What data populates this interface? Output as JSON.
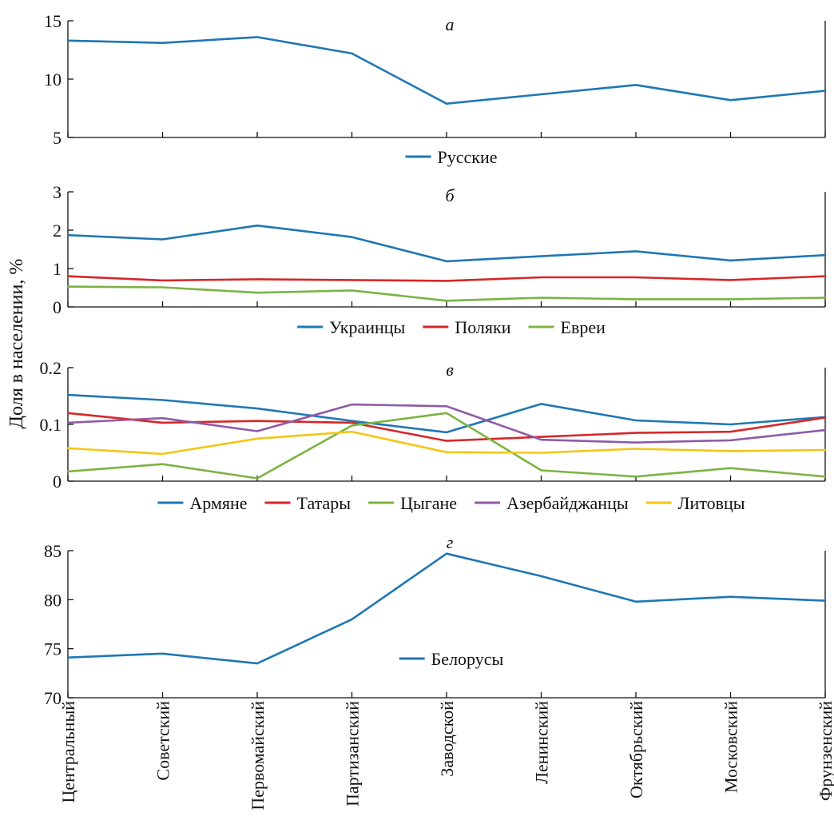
{
  "chart_data": {
    "type": "line",
    "ylabel": "Доля в населении, %",
    "categories": [
      "Центральный",
      "Советский",
      "Первомайский",
      "Партизанский",
      "Заводской",
      "Ленинский",
      "Октябрьский",
      "Московский",
      "Фрунзенский"
    ],
    "panels": [
      {
        "letter": "а",
        "ylim": [
          5,
          15
        ],
        "yticks": [
          5,
          10,
          15
        ],
        "legend_position": "bottom-center",
        "series": [
          {
            "name": "Русские",
            "color": "#1f77b4",
            "values": [
              13.3,
              13.1,
              13.6,
              12.2,
              7.9,
              8.7,
              9.5,
              8.2,
              9.0
            ]
          }
        ]
      },
      {
        "letter": "б",
        "ylim": [
          0,
          3
        ],
        "yticks": [
          0,
          1,
          2,
          3
        ],
        "legend_position": "bottom-center",
        "series": [
          {
            "name": "Украинцы",
            "color": "#1f77b4",
            "values": [
              1.87,
              1.76,
              2.12,
              1.82,
              1.19,
              1.32,
              1.45,
              1.21,
              1.35
            ]
          },
          {
            "name": "Поляки",
            "color": "#d62728",
            "values": [
              0.8,
              0.69,
              0.72,
              0.7,
              0.68,
              0.77,
              0.77,
              0.7,
              0.8
            ]
          },
          {
            "name": "Евреи",
            "color": "#7cb342",
            "values": [
              0.53,
              0.51,
              0.37,
              0.43,
              0.16,
              0.24,
              0.2,
              0.2,
              0.24
            ]
          }
        ]
      },
      {
        "letter": "в",
        "ylim": [
          0,
          0.2
        ],
        "yticks": [
          0,
          0.1,
          0.2
        ],
        "legend_position": "bottom-center",
        "series": [
          {
            "name": "Армяне",
            "color": "#1f77b4",
            "values": [
              0.152,
              0.143,
              0.128,
              0.106,
              0.086,
              0.136,
              0.107,
              0.1,
              0.113
            ]
          },
          {
            "name": "Татары",
            "color": "#d62728",
            "values": [
              0.12,
              0.103,
              0.106,
              0.103,
              0.071,
              0.078,
              0.085,
              0.087,
              0.112
            ]
          },
          {
            "name": "Цыгане",
            "color": "#7cb342",
            "values": [
              0.017,
              0.03,
              0.005,
              0.098,
              0.12,
              0.019,
              0.008,
              0.023,
              0.008
            ]
          },
          {
            "name": "Азербайджанцы",
            "color": "#8e5ba6",
            "values": [
              0.103,
              0.111,
              0.088,
              0.135,
              0.132,
              0.073,
              0.068,
              0.072,
              0.09
            ]
          },
          {
            "name": "Литовцы",
            "color": "#f5c518",
            "values": [
              0.058,
              0.048,
              0.075,
              0.087,
              0.051,
              0.05,
              0.057,
              0.053,
              0.055
            ]
          }
        ]
      },
      {
        "letter": "г",
        "ylim": [
          70,
          85
        ],
        "yticks": [
          70,
          75,
          80,
          85
        ],
        "legend_position": "center",
        "series": [
          {
            "name": "Белорусы",
            "color": "#1f77b4",
            "values": [
              74.1,
              74.5,
              73.5,
              78.0,
              84.7,
              82.4,
              79.8,
              80.3,
              79.9
            ]
          }
        ]
      }
    ]
  }
}
